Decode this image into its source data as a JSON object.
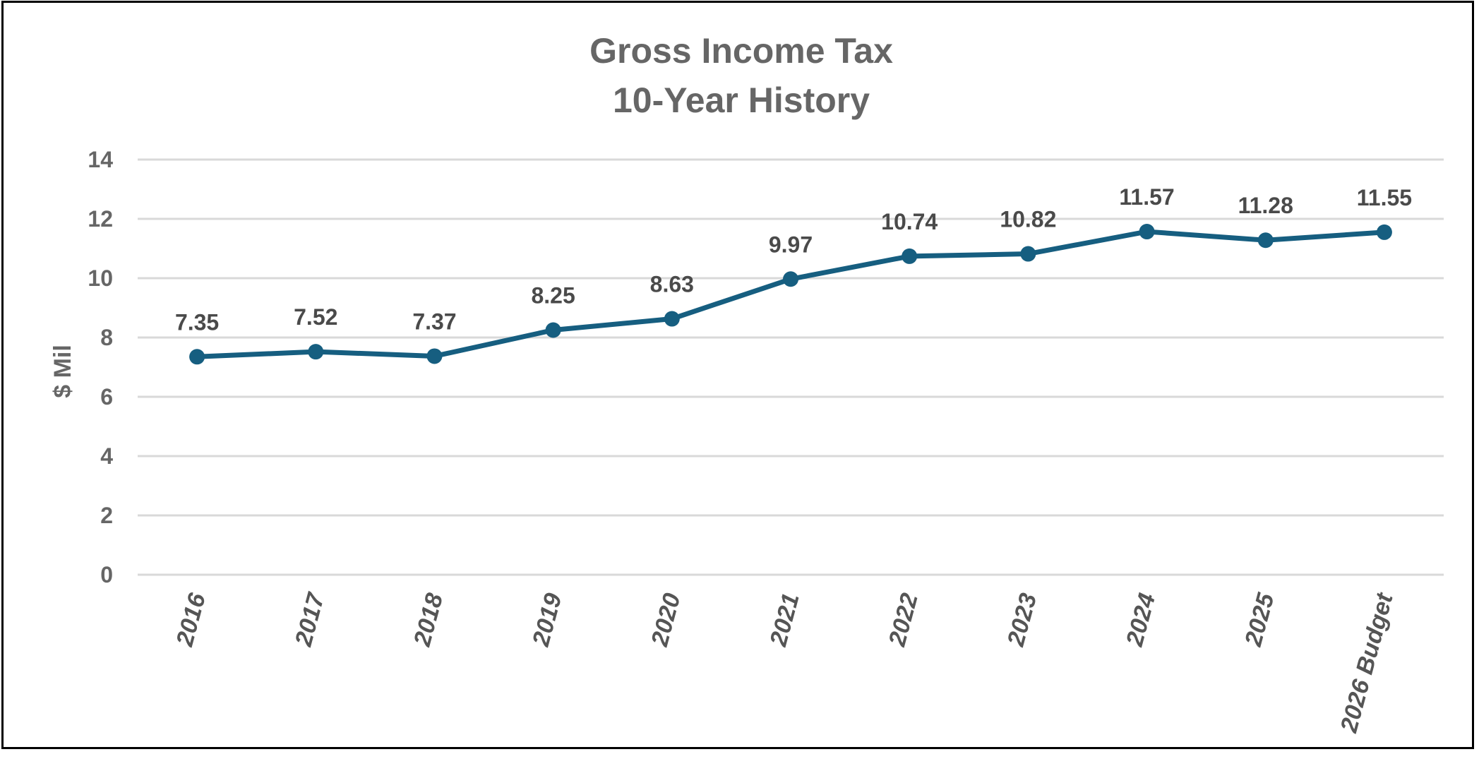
{
  "chart_data": {
    "type": "line",
    "title": "Gross Income Tax",
    "subtitle": "10-Year History",
    "xlabel": "",
    "ylabel": "$ Mil",
    "ylim": [
      0,
      14
    ],
    "yticks": [
      0,
      2,
      4,
      6,
      8,
      10,
      12,
      14
    ],
    "grid": true,
    "legend": "none",
    "categories": [
      "2016",
      "2017",
      "2018",
      "2019",
      "2020",
      "2021",
      "2022",
      "2023",
      "2024",
      "2025",
      "2026 Budget"
    ],
    "series": [
      {
        "values": [
          7.35,
          7.52,
          7.37,
          8.25,
          8.63,
          9.97,
          10.74,
          10.82,
          11.57,
          11.28,
          11.55
        ],
        "labels": [
          "7.35",
          "7.52",
          "7.37",
          "8.25",
          "8.63",
          "9.97",
          "10.74",
          "10.82",
          "11.57",
          "11.28",
          "11.55"
        ],
        "color": "#165e80"
      }
    ],
    "gridColor": "#d9d9d9",
    "axisTextColor": "#666666"
  }
}
